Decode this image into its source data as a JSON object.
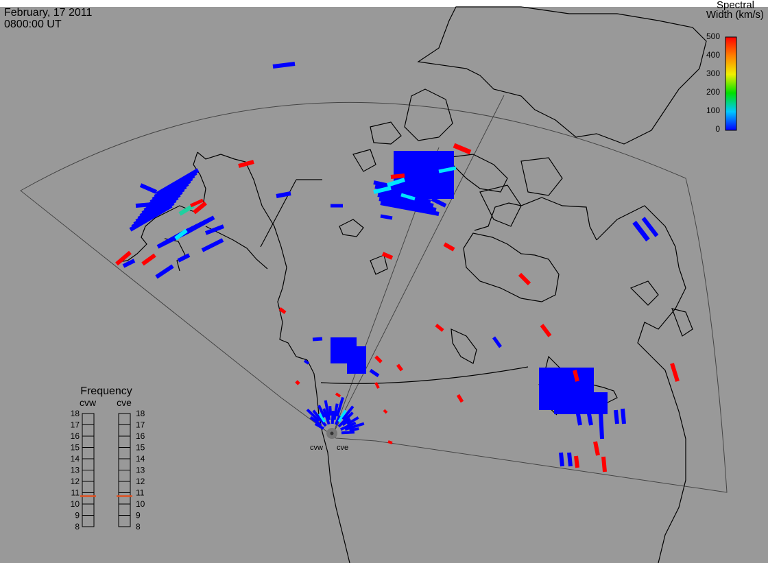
{
  "header": {
    "date": "February, 17 2011",
    "time": "0800:00 UT"
  },
  "colorbar": {
    "title_line1": "Spectral",
    "title_line2": "Width (km/s)",
    "ticks": [
      "500",
      "400",
      "300",
      "200",
      "100",
      "0"
    ],
    "min": 0,
    "max": 500
  },
  "radars": {
    "west": "cvw",
    "east": "cve"
  },
  "frequency_panel": {
    "title": "Frequency",
    "columns": [
      "cvw",
      "cve"
    ],
    "ticks": [
      "18",
      "17",
      "16",
      "15",
      "14",
      "13",
      "12",
      "11",
      "10",
      "9",
      "8"
    ],
    "current_cvw": 10.7,
    "current_cve": 10.7,
    "marker_color": "#e05020"
  },
  "colors": {
    "background": "#999999",
    "coast": "#000000",
    "fov": "#444444",
    "low": "#0000ff",
    "cyan": "#00e5ff",
    "high": "#ff0000"
  }
}
